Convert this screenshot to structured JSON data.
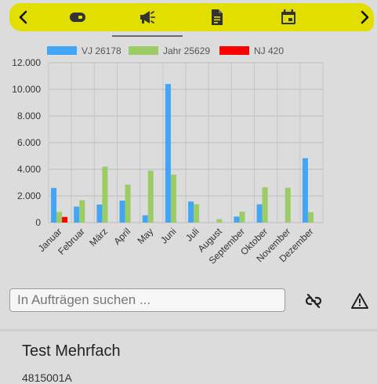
{
  "toolbar": {
    "highlight_color": "#e2df00",
    "icons": [
      "chevron-left-icon",
      "toggle-icon",
      "megaphone-icon",
      "document-icon",
      "calendar-icon",
      "chevron-right-icon"
    ]
  },
  "chart_data": {
    "type": "bar",
    "categories": [
      "Januar",
      "Februar",
      "März",
      "April",
      "May",
      "Juni",
      "Juli",
      "August",
      "September",
      "Oktober",
      "November",
      "Dezember"
    ],
    "series": [
      {
        "name": "VJ 26178",
        "color": "#42a5f5",
        "values": [
          2600,
          1200,
          1350,
          1650,
          550,
          10400,
          1580,
          0,
          450,
          1370,
          0,
          4830
        ]
      },
      {
        "name": "Jahr 25629",
        "color": "#9ccc65",
        "values": [
          800,
          1680,
          4200,
          2850,
          3900,
          3600,
          1380,
          250,
          820,
          2650,
          2620,
          780
        ]
      },
      {
        "name": "NJ 420",
        "color": "#ff0000",
        "values": [
          420,
          0,
          0,
          0,
          0,
          0,
          0,
          0,
          0,
          0,
          0,
          0
        ]
      }
    ],
    "ylim": [
      0,
      12000
    ],
    "yticks": [
      "0",
      "2.000",
      "4.000",
      "6.000",
      "8.000",
      "10.000",
      "12.000"
    ],
    "grid": true,
    "legend": "top"
  },
  "search": {
    "placeholder": "In Aufträgen suchen ..."
  },
  "card": {
    "title": "Test Mehrfach",
    "subtitle": "4815001A"
  }
}
